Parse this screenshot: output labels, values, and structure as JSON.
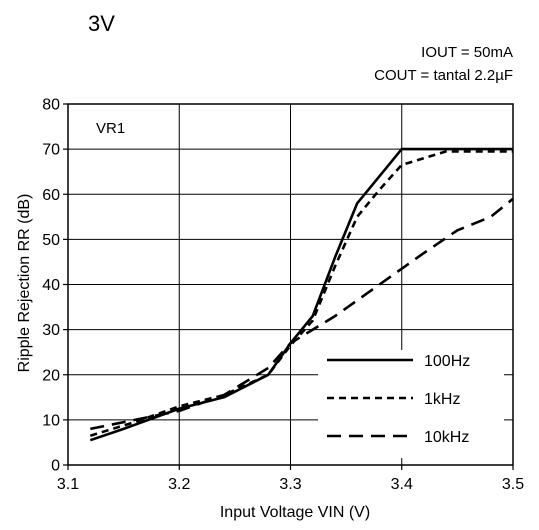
{
  "chart_data": {
    "type": "line",
    "title": "3V",
    "conditions": [
      "IOUT = 50mA",
      "COUT = tantal 2.2µF"
    ],
    "panel_label": "VR1",
    "xlabel": "Input Voltage VIN (V)",
    "ylabel": "Ripple Rejection RR (dB)",
    "xlim": [
      3.1,
      3.5
    ],
    "ylim": [
      0,
      80
    ],
    "xticks": [
      3.1,
      3.2,
      3.3,
      3.4,
      3.5
    ],
    "xtick_labels": [
      "3.1",
      "3.2",
      "3.3",
      "3.4",
      "3.5"
    ],
    "yticks": [
      0,
      10,
      20,
      30,
      40,
      50,
      60,
      70,
      80
    ],
    "ytick_labels": [
      "0",
      "10",
      "20",
      "30",
      "40",
      "50",
      "60",
      "70",
      "80"
    ],
    "grid": true,
    "legend_position": "bottom-right",
    "series": [
      {
        "name": "100Hz",
        "style": "solid",
        "points": [
          [
            3.12,
            5.5
          ],
          [
            3.15,
            8
          ],
          [
            3.2,
            12.5
          ],
          [
            3.24,
            15
          ],
          [
            3.28,
            20
          ],
          [
            3.3,
            27
          ],
          [
            3.32,
            33
          ],
          [
            3.34,
            46
          ],
          [
            3.36,
            58
          ],
          [
            3.38,
            64
          ],
          [
            3.4,
            70
          ],
          [
            3.5,
            70
          ]
        ]
      },
      {
        "name": "1kHz",
        "style": "short-dash",
        "points": [
          [
            3.12,
            6.5
          ],
          [
            3.16,
            9.5
          ],
          [
            3.2,
            13
          ],
          [
            3.24,
            15.5
          ],
          [
            3.28,
            20
          ],
          [
            3.3,
            26.5
          ],
          [
            3.32,
            32
          ],
          [
            3.34,
            44
          ],
          [
            3.36,
            55
          ],
          [
            3.38,
            61
          ],
          [
            3.4,
            66.5
          ],
          [
            3.44,
            69.5
          ],
          [
            3.5,
            69.5
          ]
        ]
      },
      {
        "name": "10kHz",
        "style": "long-dash",
        "points": [
          [
            3.12,
            8
          ],
          [
            3.16,
            10
          ],
          [
            3.2,
            12
          ],
          [
            3.24,
            15.5
          ],
          [
            3.28,
            21.5
          ],
          [
            3.3,
            27
          ],
          [
            3.34,
            33
          ],
          [
            3.38,
            40
          ],
          [
            3.42,
            47
          ],
          [
            3.45,
            52
          ],
          [
            3.48,
            55
          ],
          [
            3.5,
            59
          ]
        ]
      }
    ]
  }
}
